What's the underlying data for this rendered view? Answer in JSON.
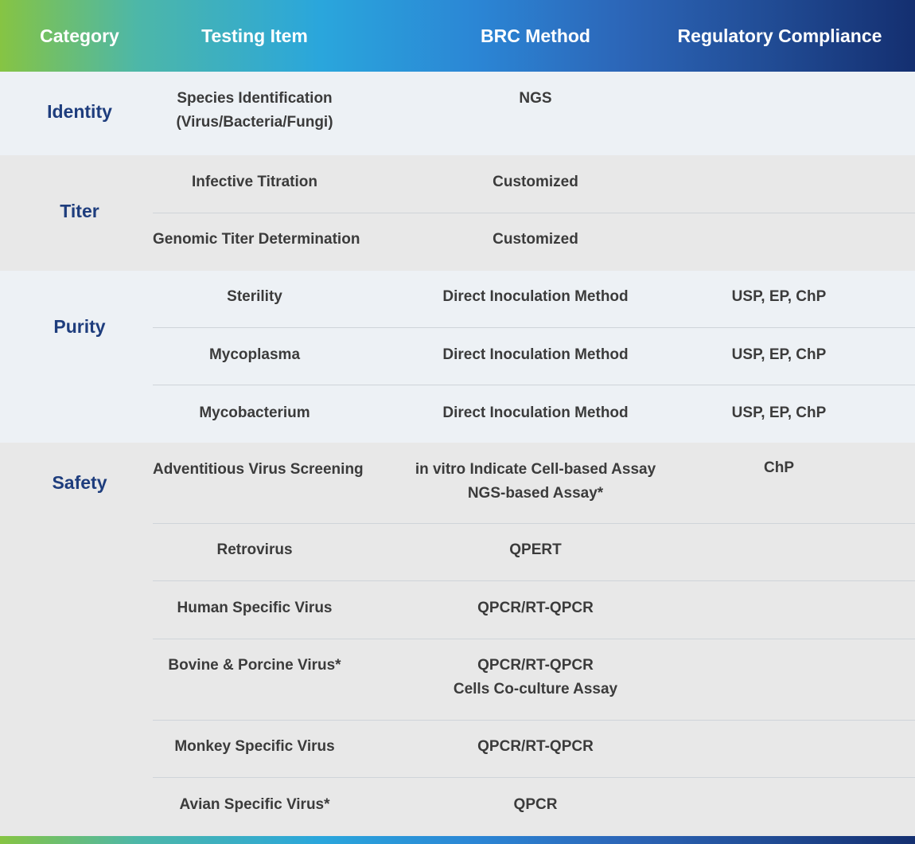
{
  "header": {
    "category": "Category",
    "testing_item": "Testing Item",
    "brc_method": "BRC Method",
    "regulatory": "Regulatory Compliance"
  },
  "sections": [
    {
      "category": "Identity",
      "rows": [
        {
          "item": "Species Identification\n(Virus/Bacteria/Fungi)",
          "method": "NGS",
          "regulatory": ""
        }
      ]
    },
    {
      "category": "Titer",
      "rows": [
        {
          "item": "Infective Titration",
          "method": "Customized",
          "regulatory": ""
        },
        {
          "item": "Genomic Titer Determination",
          "method": "Customized",
          "regulatory": ""
        }
      ]
    },
    {
      "category": "Purity",
      "rows": [
        {
          "item": "Sterility",
          "method": "Direct Inoculation Method",
          "regulatory": "USP, EP, ChP"
        },
        {
          "item": "Mycoplasma",
          "method": "Direct Inoculation Method",
          "regulatory": "USP, EP, ChP"
        },
        {
          "item": "Mycobacterium",
          "method": "Direct Inoculation Method",
          "regulatory": "USP, EP, ChP"
        }
      ]
    },
    {
      "category": "Safety",
      "rows": [
        {
          "item": "Adventitious Virus Screening",
          "method": "in vitro Indicate Cell-based Assay\nNGS-based Assay*",
          "regulatory": "ChP"
        },
        {
          "item": "Retrovirus",
          "method": "QPERT",
          "regulatory": ""
        },
        {
          "item": "Human Specific Virus",
          "method": "QPCR/RT-QPCR",
          "regulatory": ""
        },
        {
          "item": "Bovine & Porcine Virus*",
          "method": "QPCR/RT-QPCR\nCells Co-culture Assay",
          "regulatory": ""
        },
        {
          "item": "Monkey Specific Virus",
          "method": "QPCR/RT-QPCR",
          "regulatory": ""
        },
        {
          "item": "Avian Specific Virus*",
          "method": "QPCR",
          "regulatory": ""
        }
      ]
    }
  ]
}
